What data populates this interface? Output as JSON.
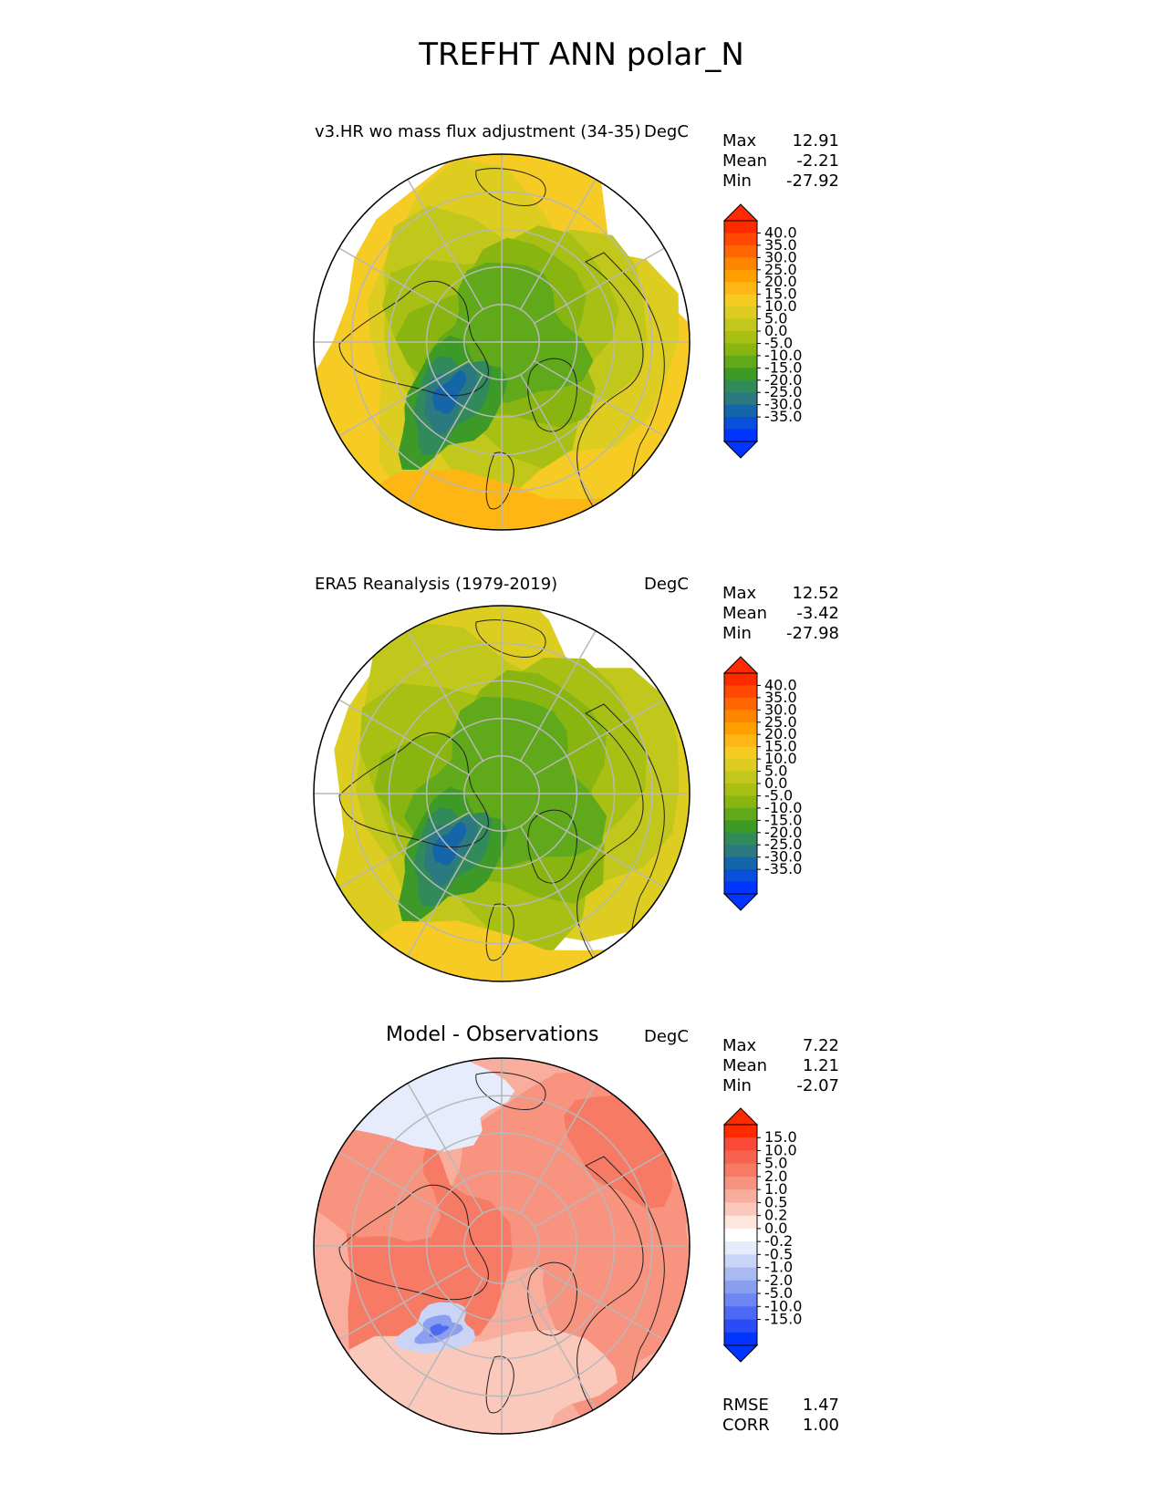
{
  "title": "TREFHT ANN polar_N",
  "panels": [
    {
      "id": "model",
      "title": "v3.HR wo mass flux adjustment (34-35)",
      "units": "DegC",
      "stats": [
        {
          "label": "Max",
          "value": "12.91"
        },
        {
          "label": "Mean",
          "value": "-2.21"
        },
        {
          "label": "Min",
          "value": "-27.92"
        }
      ],
      "colorbar": {
        "ticks": [
          "40.0",
          "35.0",
          "30.0",
          "25.0",
          "20.0",
          "15.0",
          "10.0",
          "5.0",
          "0.0",
          "-5.0",
          "-10.0",
          "-15.0",
          "-20.0",
          "-25.0",
          "-30.0",
          "-35.0"
        ],
        "colors": [
          "#ff2a00",
          "#ff4800",
          "#ff6600",
          "#ff8400",
          "#ffa000",
          "#fdb614",
          "#f5cb24",
          "#dccd20",
          "#c2c71c",
          "#a8c014",
          "#88b510",
          "#5fa91a",
          "#3e9a26",
          "#318a5a",
          "#2c7a80",
          "#1466a8",
          "#0a4edc",
          "#0035ff"
        ],
        "max_color": "#ff2a00",
        "min_color": "#0035ff"
      }
    },
    {
      "id": "obs",
      "title": "ERA5 Reanalysis (1979-2019)",
      "units": "DegC",
      "stats": [
        {
          "label": "Max",
          "value": "12.52"
        },
        {
          "label": "Mean",
          "value": "-3.42"
        },
        {
          "label": "Min",
          "value": "-27.98"
        }
      ],
      "colorbar": {
        "ticks": [
          "40.0",
          "35.0",
          "30.0",
          "25.0",
          "20.0",
          "15.0",
          "10.0",
          "5.0",
          "0.0",
          "-5.0",
          "-10.0",
          "-15.0",
          "-20.0",
          "-25.0",
          "-30.0",
          "-35.0"
        ],
        "colors": [
          "#ff2a00",
          "#ff4800",
          "#ff6600",
          "#ff8400",
          "#ffa000",
          "#fdb614",
          "#f5cb24",
          "#dccd20",
          "#c2c71c",
          "#a8c014",
          "#88b510",
          "#5fa91a",
          "#3e9a26",
          "#318a5a",
          "#2c7a80",
          "#1466a8",
          "#0a4edc",
          "#0035ff"
        ],
        "max_color": "#ff2a00",
        "min_color": "#0035ff"
      }
    },
    {
      "id": "diff",
      "title": "Model - Observations",
      "units": "DegC",
      "stats": [
        {
          "label": "Max",
          "value": "7.22"
        },
        {
          "label": "Mean",
          "value": "1.21"
        },
        {
          "label": "Min",
          "value": "-2.07"
        }
      ],
      "extra_stats": [
        {
          "label": "RMSE",
          "value": "1.47"
        },
        {
          "label": "CORR",
          "value": "1.00"
        }
      ],
      "colorbar": {
        "ticks": [
          "15.0",
          "10.0",
          "5.0",
          "2.0",
          "1.0",
          "0.5",
          "0.2",
          "0.0",
          "-0.2",
          "-0.5",
          "-1.0",
          "-2.0",
          "-5.0",
          "-10.0",
          "-15.0"
        ],
        "colors": [
          "#ff2a00",
          "#fb4a38",
          "#f7634e",
          "#f67a64",
          "#f7937e",
          "#f9ad9c",
          "#fbc8bc",
          "#fde6de",
          "#ffffff",
          "#e6ecfb",
          "#c9d4f6",
          "#a9b9f1",
          "#8b9ff0",
          "#6d86f2",
          "#4d6af4",
          "#2a4cf7",
          "#0035ff"
        ],
        "max_color": "#ff2a00",
        "min_color": "#0035ff"
      }
    }
  ]
}
